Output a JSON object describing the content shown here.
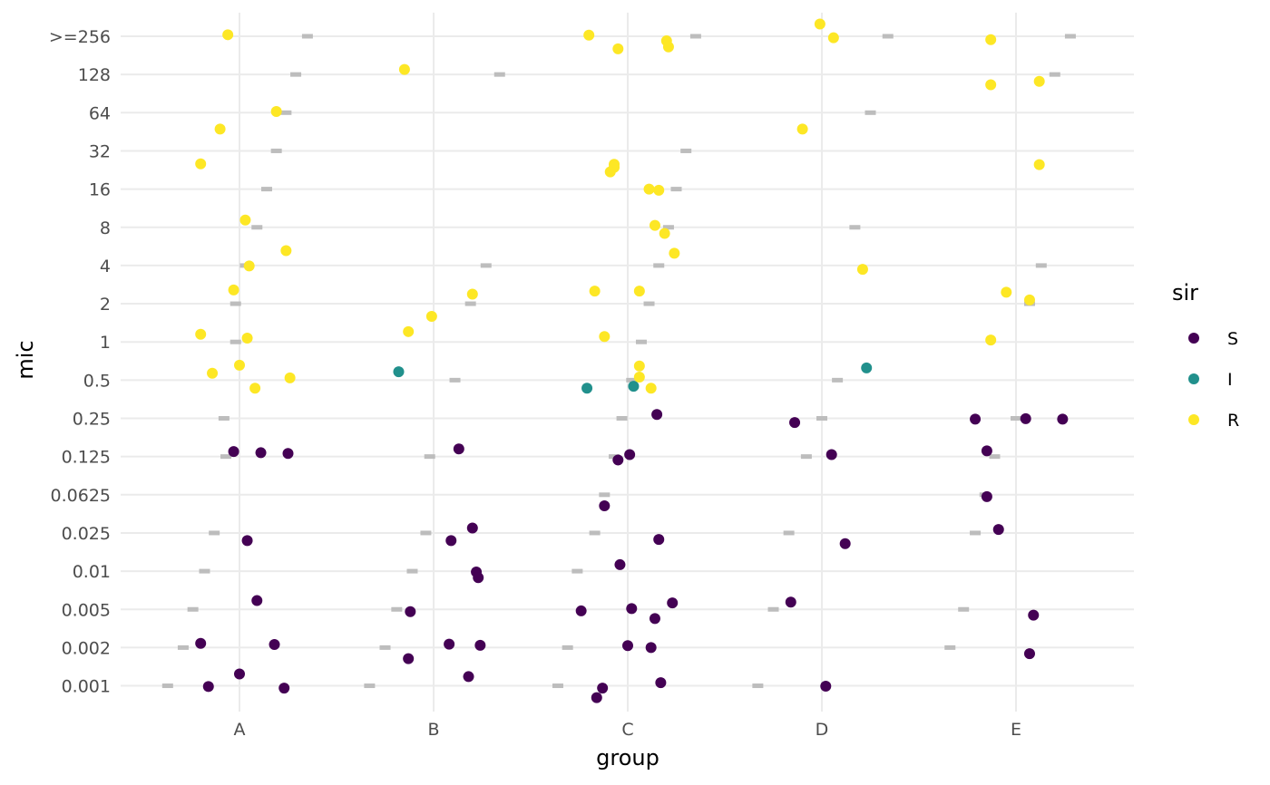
{
  "chart_data": {
    "type": "scatter",
    "xlabel": "group",
    "ylabel": "mic",
    "categories": [
      "A",
      "B",
      "C",
      "D",
      "E"
    ],
    "y_levels": [
      "0.001",
      "0.002",
      "0.005",
      "0.01",
      "0.025",
      "0.0625",
      "0.125",
      "0.25",
      "0.5",
      "1",
      "2",
      "4",
      "8",
      "16",
      "32",
      "64",
      "128",
      ">=256"
    ],
    "grid": true,
    "legend": {
      "title": "sir",
      "position": "right",
      "entries": [
        {
          "label": "S",
          "color": "#440154"
        },
        {
          "label": "I",
          "color": "#21908C"
        },
        {
          "label": "R",
          "color": "#FDE725"
        }
      ]
    },
    "breakpoints": {
      "color": "#bdbdbd",
      "description_note": "",
      "A": [
        [
          -0.37,
          0
        ],
        [
          -0.29,
          1
        ],
        [
          -0.24,
          2
        ],
        [
          -0.18,
          3
        ],
        [
          -0.13,
          4
        ],
        [
          -0.07,
          6
        ],
        [
          -0.08,
          7
        ],
        [
          -0.02,
          9
        ],
        [
          -0.02,
          10
        ],
        [
          0.03,
          11
        ],
        [
          0.09,
          12
        ],
        [
          0.14,
          13
        ],
        [
          0.19,
          14
        ],
        [
          0.24,
          15
        ],
        [
          0.29,
          16
        ],
        [
          0.35,
          17
        ]
      ],
      "B": [
        [
          -0.33,
          0
        ],
        [
          -0.25,
          1
        ],
        [
          -0.19,
          2
        ],
        [
          -0.11,
          3
        ],
        [
          -0.04,
          4
        ],
        [
          -0.02,
          6
        ],
        [
          0.11,
          8
        ],
        [
          0.19,
          10
        ],
        [
          0.27,
          11
        ],
        [
          0.34,
          16
        ]
      ],
      "C": [
        [
          -0.36,
          0
        ],
        [
          -0.31,
          1
        ],
        [
          -0.26,
          3
        ],
        [
          -0.17,
          4
        ],
        [
          -0.12,
          5
        ],
        [
          -0.07,
          6
        ],
        [
          -0.03,
          7
        ],
        [
          0.02,
          8
        ],
        [
          0.07,
          9
        ],
        [
          0.11,
          10
        ],
        [
          0.16,
          11
        ],
        [
          0.21,
          12
        ],
        [
          0.25,
          13
        ],
        [
          0.3,
          14
        ],
        [
          0.35,
          17
        ]
      ],
      "D": [
        [
          -0.33,
          0
        ],
        [
          -0.25,
          2
        ],
        [
          -0.17,
          4
        ],
        [
          -0.08,
          6
        ],
        [
          0.0,
          7
        ],
        [
          0.08,
          8
        ],
        [
          0.17,
          12
        ],
        [
          0.25,
          15
        ],
        [
          0.34,
          17
        ]
      ],
      "E": [
        [
          -0.34,
          1
        ],
        [
          -0.27,
          2
        ],
        [
          -0.21,
          4
        ],
        [
          -0.16,
          5
        ],
        [
          -0.11,
          6
        ],
        [
          0.0,
          7
        ],
        [
          0.07,
          10
        ],
        [
          0.13,
          11
        ],
        [
          0.2,
          16
        ],
        [
          0.28,
          17
        ]
      ]
    },
    "series": [
      {
        "name": "S",
        "points": [
          [
            "A",
            0.11,
            6.1
          ],
          [
            "A",
            -0.03,
            6.13
          ],
          [
            "A",
            0.25,
            6.08
          ],
          [
            "A",
            0.04,
            3.8
          ],
          [
            "A",
            0.09,
            2.23
          ],
          [
            "A",
            -0.2,
            1.11
          ],
          [
            "A",
            0.18,
            1.08
          ],
          [
            "A",
            0.0,
            0.31
          ],
          [
            "A",
            -0.16,
            -0.02
          ],
          [
            "A",
            0.23,
            -0.06
          ],
          [
            "B",
            0.13,
            6.2
          ],
          [
            "B",
            0.2,
            4.13
          ],
          [
            "B",
            0.09,
            3.8
          ],
          [
            "B",
            0.22,
            2.98
          ],
          [
            "B",
            0.23,
            2.83
          ],
          [
            "B",
            -0.12,
            1.94
          ],
          [
            "B",
            0.08,
            1.09
          ],
          [
            "B",
            0.24,
            1.06
          ],
          [
            "B",
            -0.13,
            0.71
          ],
          [
            "B",
            0.18,
            0.24
          ],
          [
            "C",
            0.15,
            7.1
          ],
          [
            "C",
            0.01,
            6.05
          ],
          [
            "C",
            -0.05,
            5.91
          ],
          [
            "C",
            -0.12,
            4.71
          ],
          [
            "C",
            0.16,
            3.83
          ],
          [
            "C",
            -0.04,
            3.17
          ],
          [
            "C",
            0.23,
            2.17
          ],
          [
            "C",
            0.02,
            2.02
          ],
          [
            "C",
            -0.24,
            1.96
          ],
          [
            "C",
            0.14,
            1.76
          ],
          [
            "C",
            0.0,
            1.05
          ],
          [
            "C",
            0.12,
            1.0
          ],
          [
            "C",
            0.17,
            0.08
          ],
          [
            "C",
            -0.13,
            -0.06
          ],
          [
            "C",
            -0.16,
            -0.31
          ],
          [
            "D",
            -0.14,
            6.89
          ],
          [
            "D",
            0.05,
            6.05
          ],
          [
            "D",
            0.12,
            3.72
          ],
          [
            "D",
            -0.16,
            2.19
          ],
          [
            "D",
            0.02,
            -0.01
          ],
          [
            "E",
            -0.21,
            6.98
          ],
          [
            "E",
            0.05,
            6.99
          ],
          [
            "E",
            0.24,
            6.98
          ],
          [
            "E",
            -0.15,
            6.15
          ],
          [
            "E",
            -0.15,
            4.95
          ],
          [
            "E",
            -0.09,
            4.09
          ],
          [
            "E",
            0.09,
            1.85
          ],
          [
            "E",
            0.07,
            0.84
          ]
        ]
      },
      {
        "name": "I",
        "points": [
          [
            "B",
            -0.18,
            8.22
          ],
          [
            "C",
            -0.21,
            7.79
          ],
          [
            "C",
            0.03,
            7.84
          ],
          [
            "D",
            0.23,
            8.32
          ]
        ]
      },
      {
        "name": "R",
        "points": [
          [
            "A",
            -0.06,
            17.04
          ],
          [
            "A",
            0.19,
            15.03
          ],
          [
            "A",
            -0.1,
            14.57
          ],
          [
            "A",
            -0.2,
            13.66
          ],
          [
            "A",
            0.03,
            12.19
          ],
          [
            "A",
            0.24,
            11.39
          ],
          [
            "A",
            0.05,
            10.99
          ],
          [
            "A",
            -0.03,
            10.36
          ],
          [
            "A",
            -0.2,
            9.2
          ],
          [
            "A",
            0.04,
            9.1
          ],
          [
            "A",
            0.0,
            8.39
          ],
          [
            "A",
            -0.14,
            8.18
          ],
          [
            "A",
            0.26,
            8.06
          ],
          [
            "A",
            0.08,
            7.79
          ],
          [
            "B",
            -0.15,
            16.13
          ],
          [
            "B",
            -0.13,
            9.27
          ],
          [
            "B",
            -0.01,
            9.67
          ],
          [
            "B",
            0.2,
            10.25
          ],
          [
            "C",
            -0.2,
            17.03
          ],
          [
            "C",
            0.2,
            16.88
          ],
          [
            "C",
            -0.05,
            16.67
          ],
          [
            "C",
            0.21,
            16.72
          ],
          [
            "C",
            -0.07,
            13.65
          ],
          [
            "C",
            -0.07,
            13.57
          ],
          [
            "C",
            -0.09,
            13.45
          ],
          [
            "C",
            0.11,
            13.0
          ],
          [
            "C",
            0.16,
            12.97
          ],
          [
            "C",
            0.14,
            12.05
          ],
          [
            "C",
            0.19,
            11.84
          ],
          [
            "C",
            0.24,
            11.32
          ],
          [
            "C",
            -0.17,
            10.33
          ],
          [
            "C",
            0.06,
            10.33
          ],
          [
            "C",
            -0.12,
            9.14
          ],
          [
            "C",
            0.06,
            8.37
          ],
          [
            "C",
            0.06,
            8.08
          ],
          [
            "C",
            0.12,
            7.79
          ],
          [
            "D",
            -0.01,
            17.32
          ],
          [
            "D",
            0.06,
            16.96
          ],
          [
            "D",
            -0.1,
            14.57
          ],
          [
            "D",
            0.21,
            10.9
          ],
          [
            "E",
            -0.13,
            16.91
          ],
          [
            "E",
            0.12,
            15.82
          ],
          [
            "E",
            -0.13,
            15.73
          ],
          [
            "E",
            0.12,
            13.64
          ],
          [
            "E",
            -0.05,
            10.3
          ],
          [
            "E",
            0.07,
            10.1
          ],
          [
            "E",
            -0.13,
            9.05
          ]
        ]
      }
    ]
  }
}
